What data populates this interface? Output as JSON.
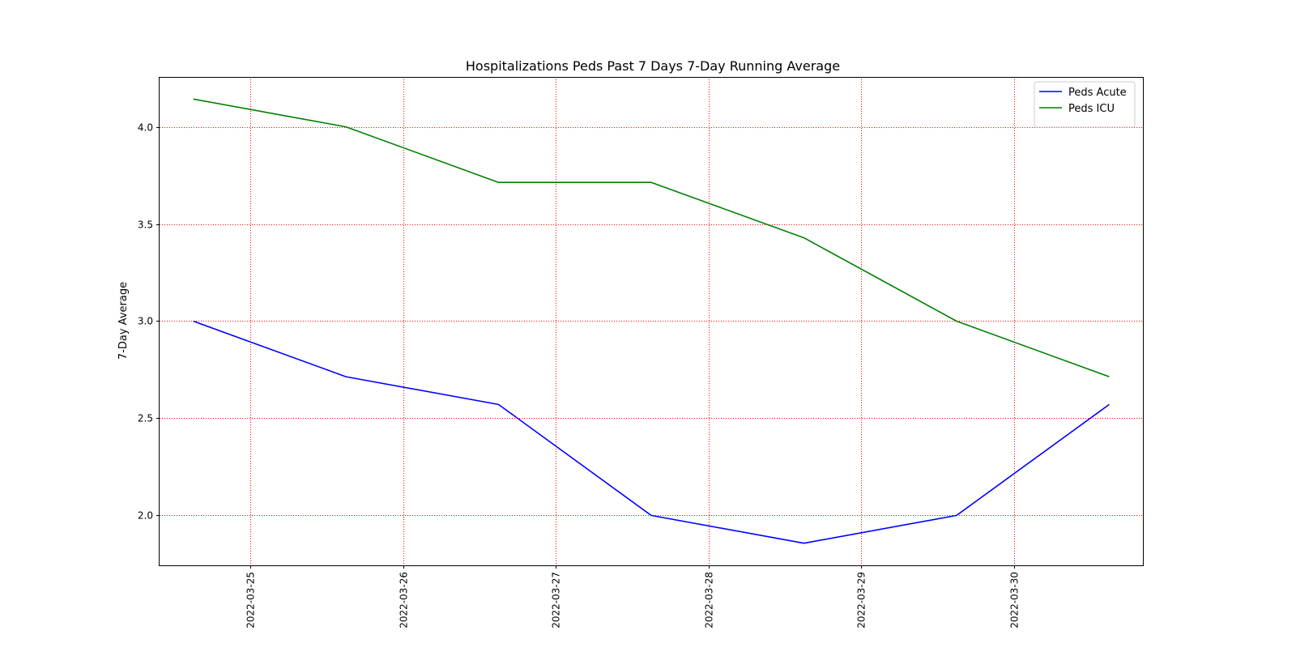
{
  "chart_data": {
    "type": "line",
    "title": "Hospitalizations Peds Past 7 Days 7-Day Running Average",
    "xlabel": "",
    "ylabel": "7-Day Average",
    "x": [
      "2022-03-24 15:00",
      "2022-03-25 15:00",
      "2022-03-26 15:00",
      "2022-03-27 15:00",
      "2022-03-28 15:00",
      "2022-03-29 15:00",
      "2022-03-30 15:00"
    ],
    "xlim": [
      "2022-03-24 09:42",
      "2022-03-30 20:18"
    ],
    "x_ticks": [
      "2022-03-25",
      "2022-03-26",
      "2022-03-27",
      "2022-03-28",
      "2022-03-29",
      "2022-03-30"
    ],
    "ylim": [
      1.743,
      4.257
    ],
    "y_ticks": [
      "2.0",
      "2.5",
      "3.0",
      "3.5",
      "4.0"
    ],
    "series": [
      {
        "name": "Peds Acute",
        "color": "#0000ff",
        "values": [
          3.0,
          2.714,
          2.571,
          2.0,
          1.857,
          2.0,
          2.571
        ]
      },
      {
        "name": "Peds ICU",
        "color": "#008000",
        "values": [
          4.143,
          4.0,
          3.714,
          3.714,
          3.429,
          3.0,
          2.714
        ]
      }
    ],
    "grid": true,
    "grid_color": "#ff0000",
    "legend_position": "top-right"
  }
}
